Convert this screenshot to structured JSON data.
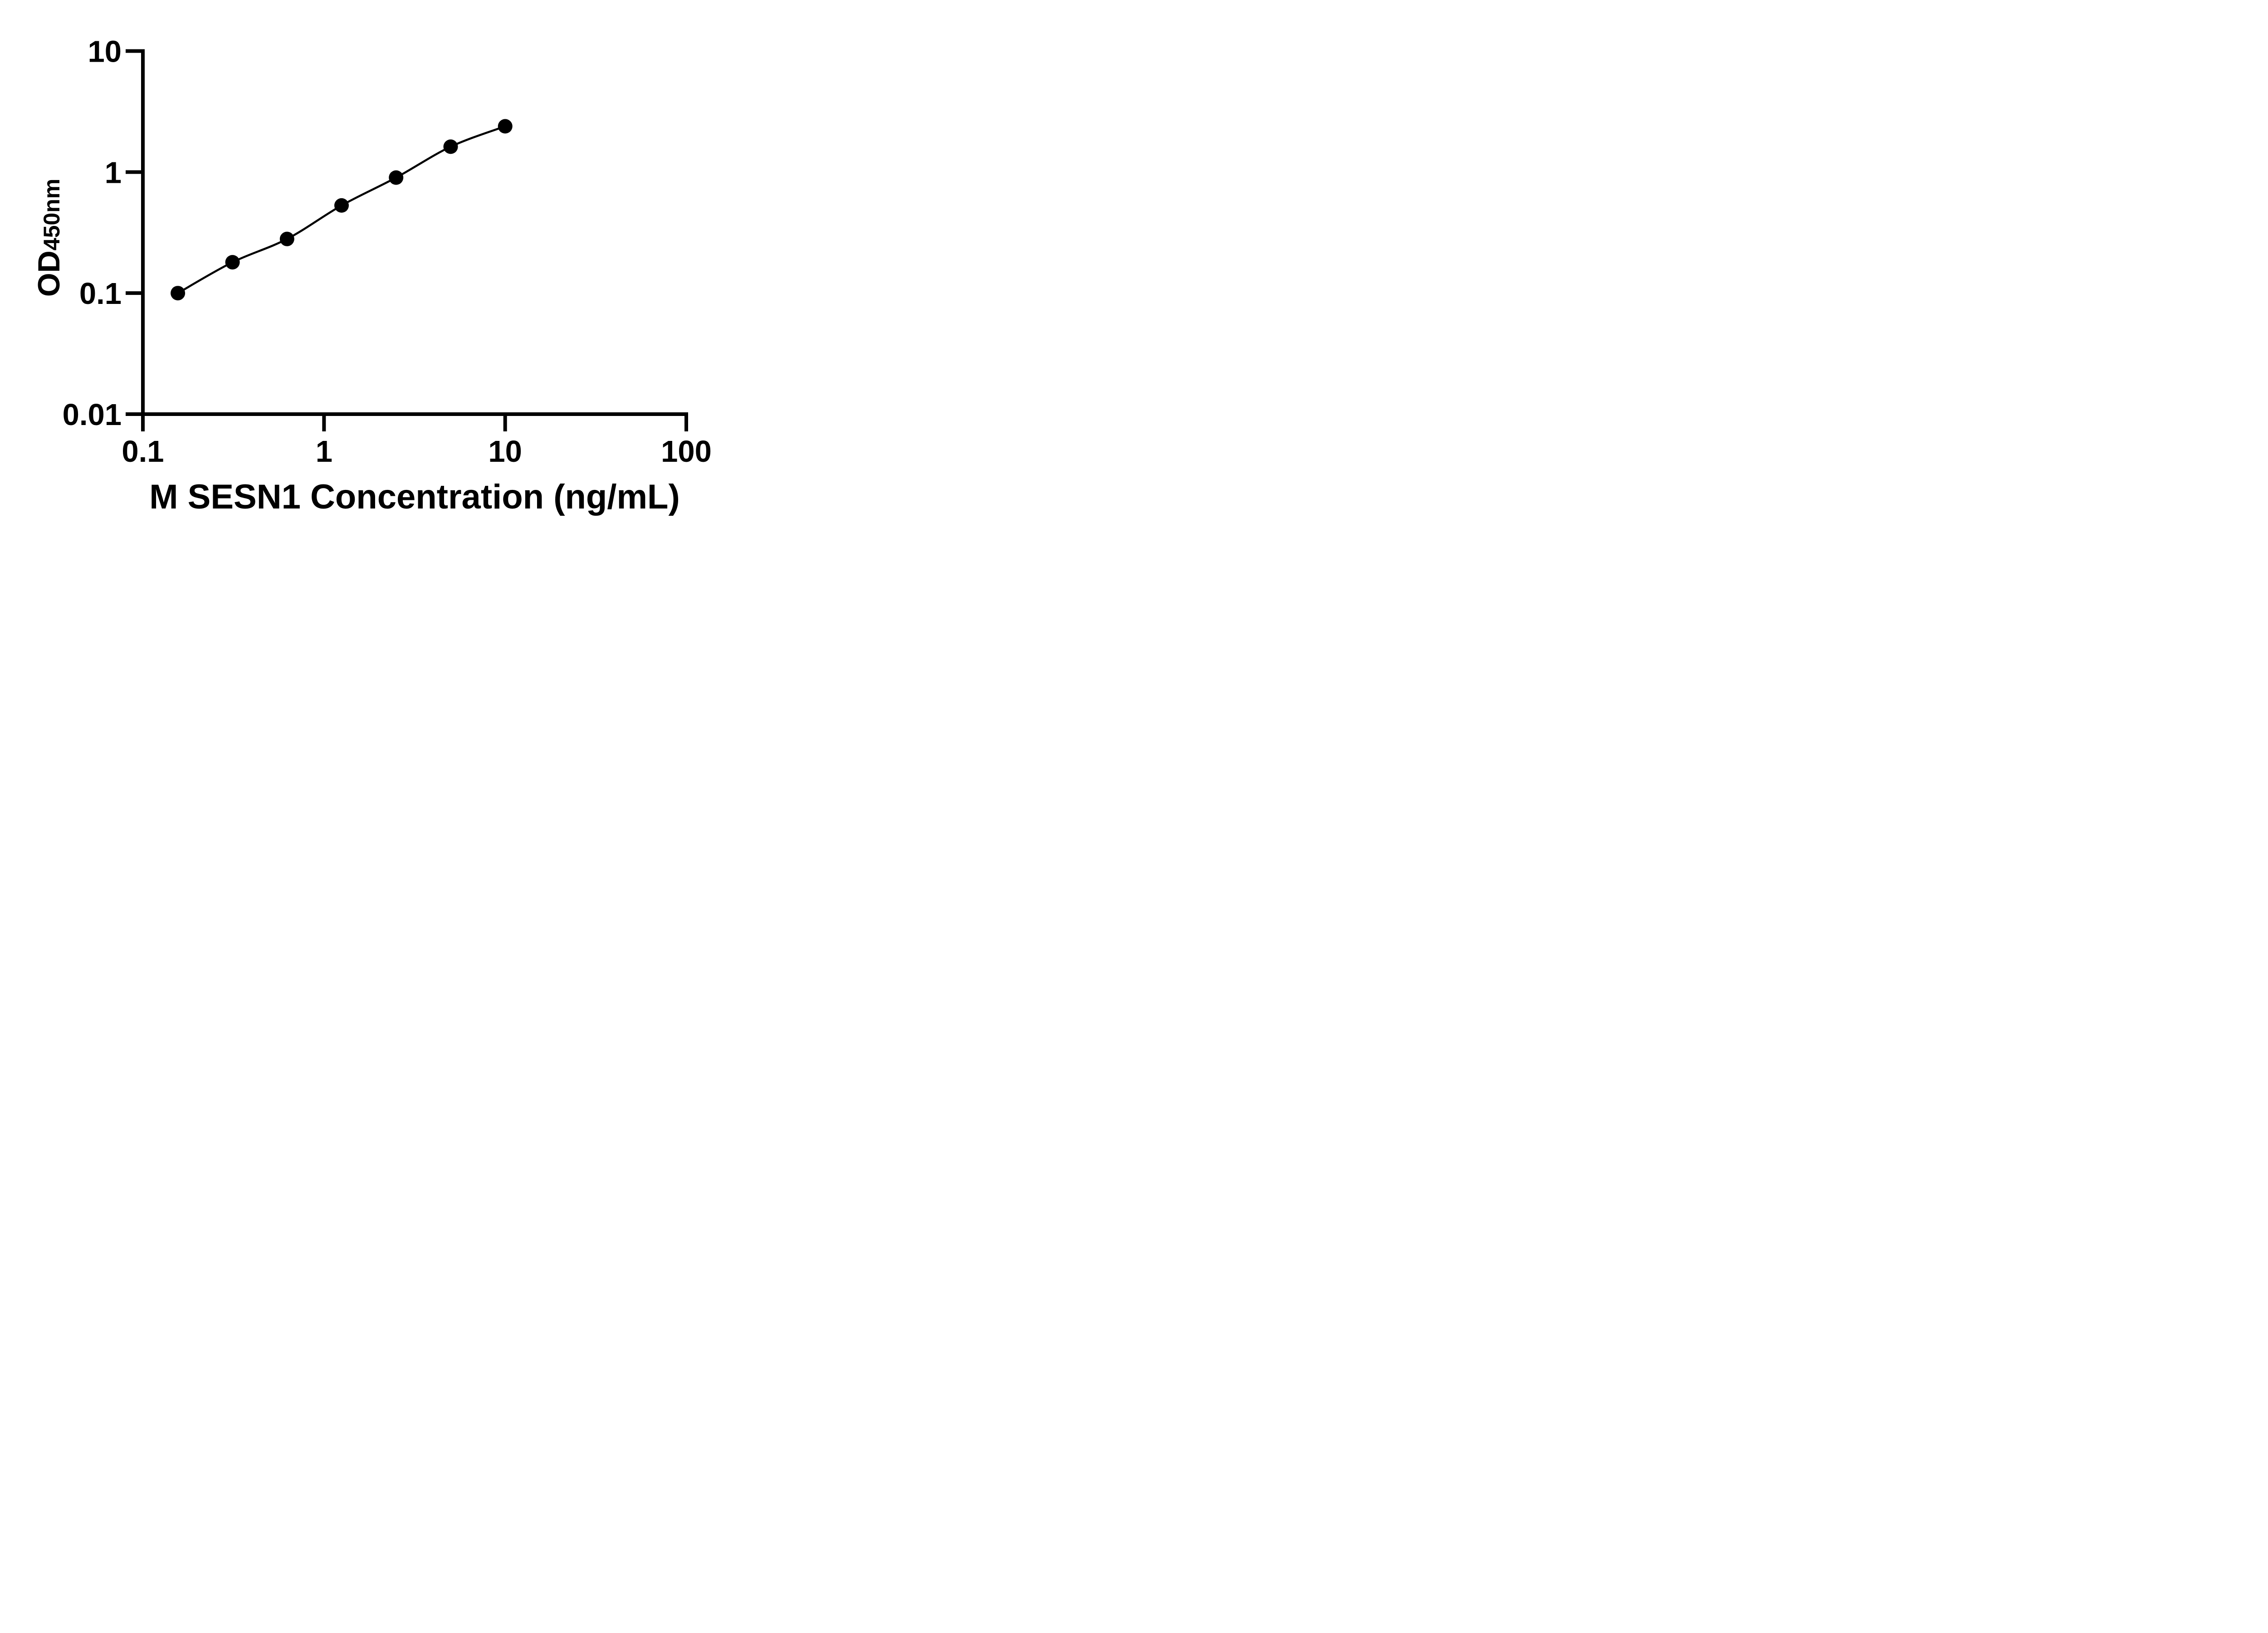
{
  "chart_data": {
    "type": "scatter",
    "x_label": "M SESN1 Concentration (ng/mL)",
    "y_label_main": "OD",
    "y_label_sub": "450nm",
    "x_scale": "log",
    "y_scale": "log",
    "xlim": [
      0.1,
      100
    ],
    "ylim": [
      0.01,
      10
    ],
    "x_ticks": {
      "values": [
        0.1,
        1,
        10,
        100
      ],
      "labels": [
        "0.1",
        "1",
        "10",
        "100"
      ]
    },
    "y_ticks": {
      "values": [
        10,
        1,
        0.1,
        0.01
      ],
      "labels": [
        "10",
        "1",
        "0.1",
        "0.01"
      ]
    },
    "grid": false,
    "legend": "none",
    "series": [
      {
        "x": [
          0.156,
          0.3125,
          0.625,
          1.25,
          2.5,
          5,
          10
        ],
        "y": [
          0.1,
          0.18,
          0.28,
          0.53,
          0.9,
          1.62,
          2.39
        ],
        "marker": "filled-circle",
        "marker_color": "#000000",
        "line_color": "#000000"
      }
    ]
  },
  "style": {
    "background": "#ffffff",
    "axis_color": "#000000",
    "text_color": "#000000"
  }
}
